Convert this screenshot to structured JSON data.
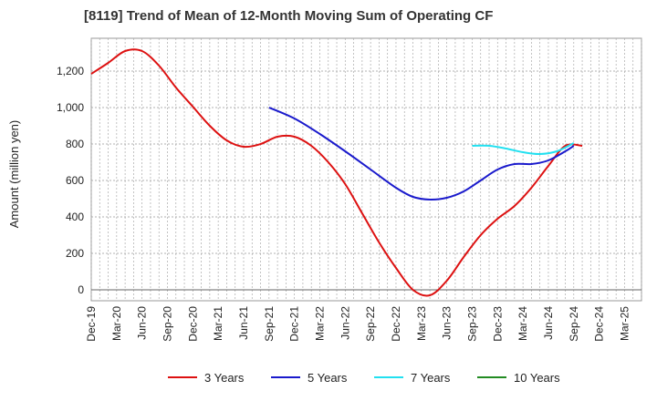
{
  "chart_data": {
    "type": "line",
    "title": "[8119]  Trend of Mean of 12-Month Moving Sum of Operating CF",
    "xlabel": "",
    "ylabel": "Amount (million yen)",
    "ylim": [
      -60,
      1380
    ],
    "yticks": [
      0,
      200,
      400,
      600,
      800,
      1000,
      1200
    ],
    "ytick_labels": [
      "0",
      "200",
      "400",
      "600",
      "800",
      "1,000",
      "1,200"
    ],
    "x_tick_labels": [
      "Dec-19",
      "Mar-20",
      "Jun-20",
      "Sep-20",
      "Dec-20",
      "Mar-21",
      "Jun-21",
      "Sep-21",
      "Dec-21",
      "Mar-22",
      "Jun-22",
      "Sep-22",
      "Dec-22",
      "Mar-23",
      "Jun-23",
      "Sep-23",
      "Dec-23",
      "Mar-24",
      "Jun-24",
      "Sep-24",
      "Dec-24",
      "Mar-25"
    ],
    "x_range_months": [
      0,
      65
    ],
    "grid": true,
    "legend_position": "bottom",
    "series": [
      {
        "name": "3 Years",
        "color": "#dd1111",
        "x_months": [
          0,
          2,
          4,
          6,
          8,
          10,
          12,
          14,
          16,
          18,
          20,
          22,
          24,
          26,
          28,
          30,
          32,
          34,
          36,
          38,
          40,
          42,
          44,
          46,
          48,
          50,
          52,
          54,
          56,
          58
        ],
        "values": [
          1185,
          1245,
          1310,
          1310,
          1230,
          1110,
          1005,
          900,
          820,
          785,
          800,
          840,
          840,
          790,
          700,
          580,
          420,
          260,
          120,
          0,
          -30,
          50,
          180,
          300,
          390,
          460,
          560,
          680,
          790,
          790
        ]
      },
      {
        "name": "5 Years",
        "color": "#1a1acc",
        "x_months": [
          21,
          24,
          27,
          30,
          33,
          36,
          38,
          40,
          42,
          44,
          46,
          48,
          50,
          52,
          54,
          56,
          57
        ],
        "values": [
          1000,
          940,
          855,
          760,
          660,
          560,
          510,
          495,
          505,
          540,
          600,
          660,
          690,
          690,
          710,
          760,
          790
        ]
      },
      {
        "name": "7 Years",
        "color": "#22e0f0",
        "x_months": [
          45,
          47,
          49,
          51,
          53,
          55,
          57
        ],
        "values": [
          790,
          790,
          775,
          755,
          745,
          760,
          805
        ]
      },
      {
        "name": "10 Years",
        "color": "#228b22",
        "x_months": [],
        "values": []
      }
    ]
  }
}
